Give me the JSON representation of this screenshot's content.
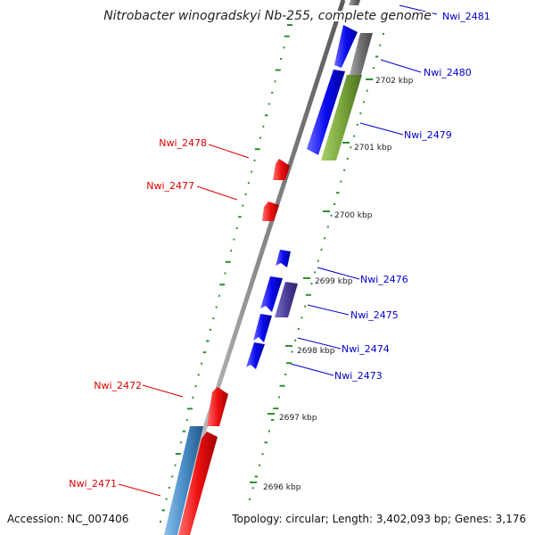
{
  "title": "Nitrobacter winogradskyi Nb-255, complete genome",
  "footer": {
    "accession": "Accession: NC_007406",
    "summary": "Topology: circular; Length: 3,402,093 bp; Genes: 3,176"
  },
  "colors": {
    "forward_gene": "#0a0af0",
    "reverse_gene": "#ee1111",
    "forward_label": "#0000cc",
    "reverse_label": "#dd0000",
    "backbone": "#8c8c8c",
    "gc_dash": "#2f8f2f",
    "pseudo_gray": "#707070",
    "olive_gene": "#7aa73c",
    "slate_gene": "#4b3f9a",
    "steel_gene": "#4a8ec8"
  },
  "ticks": [
    {
      "label": "2702 kbp"
    },
    {
      "label": "2701 kbp"
    },
    {
      "label": "2700 kbp"
    },
    {
      "label": "2699 kbp"
    },
    {
      "label": "2698 kbp"
    },
    {
      "label": "2697 kbp"
    },
    {
      "label": "2696 kbp"
    }
  ],
  "genes": [
    {
      "name": "Nwi_2481",
      "strand": "+"
    },
    {
      "name": "Nwi_2480",
      "strand": "+"
    },
    {
      "name": "Nwi_2479",
      "strand": "+"
    },
    {
      "name": "Nwi_2478",
      "strand": "-"
    },
    {
      "name": "Nwi_2477",
      "strand": "-"
    },
    {
      "name": "Nwi_2476",
      "strand": "+"
    },
    {
      "name": "Nwi_2475",
      "strand": "+"
    },
    {
      "name": "Nwi_2474",
      "strand": "+"
    },
    {
      "name": "Nwi_2473",
      "strand": "+"
    },
    {
      "name": "Nwi_2472",
      "strand": "-"
    },
    {
      "name": "Nwi_2471",
      "strand": "-"
    }
  ]
}
